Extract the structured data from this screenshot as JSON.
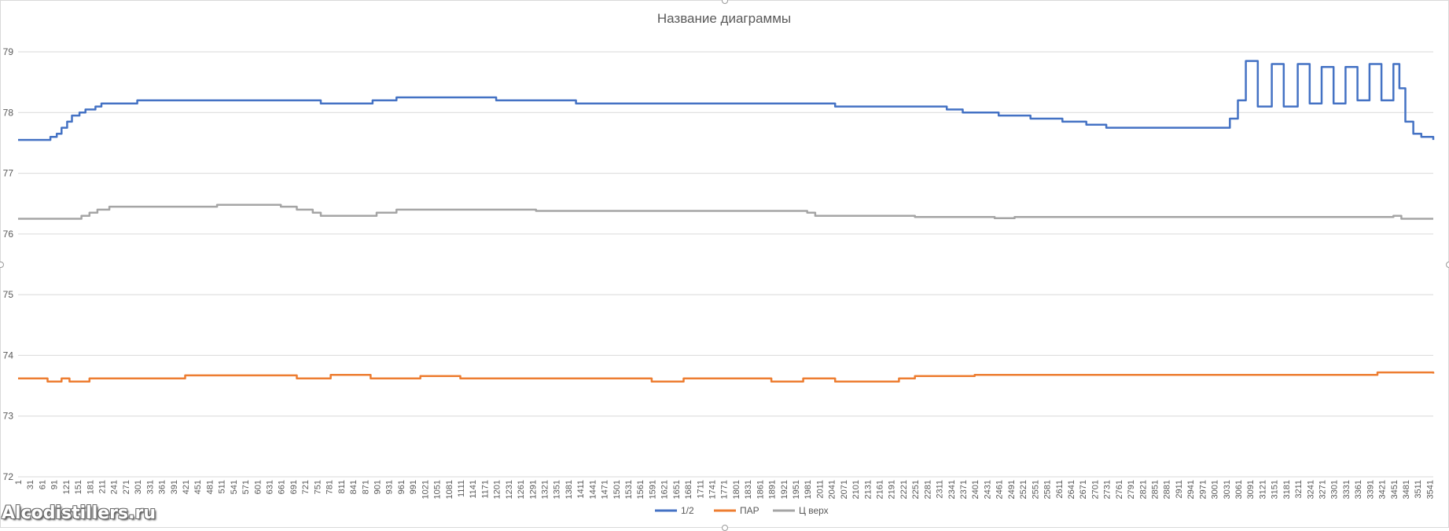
{
  "watermark": "Alcodistillers.ru",
  "chart_data": {
    "type": "line",
    "title": "Название диаграммы",
    "xlabel": "",
    "ylabel": "",
    "ylim": [
      72,
      79
    ],
    "yticks": [
      72,
      73,
      74,
      75,
      76,
      77,
      78,
      79
    ],
    "xlim": [
      1,
      3550
    ],
    "xtick_start": 1,
    "xtick_step": 30,
    "xtick_end": 3541,
    "grid": true,
    "legend_position": "bottom",
    "series": [
      {
        "name": "1/2",
        "color": "#4472c4",
        "points": [
          [
            1,
            77.55
          ],
          [
            75,
            77.55
          ],
          [
            82,
            77.6
          ],
          [
            98,
            77.65
          ],
          [
            110,
            77.75
          ],
          [
            124,
            77.85
          ],
          [
            136,
            77.95
          ],
          [
            155,
            78.0
          ],
          [
            170,
            78.05
          ],
          [
            195,
            78.1
          ],
          [
            210,
            78.15
          ],
          [
            300,
            78.2
          ],
          [
            700,
            78.2
          ],
          [
            760,
            78.15
          ],
          [
            890,
            78.2
          ],
          [
            950,
            78.25
          ],
          [
            1150,
            78.25
          ],
          [
            1200,
            78.2
          ],
          [
            1400,
            78.15
          ],
          [
            2000,
            78.15
          ],
          [
            2050,
            78.1
          ],
          [
            2330,
            78.05
          ],
          [
            2370,
            78.0
          ],
          [
            2460,
            77.95
          ],
          [
            2540,
            77.9
          ],
          [
            2620,
            77.85
          ],
          [
            2680,
            77.8
          ],
          [
            2730,
            77.75
          ],
          [
            3010,
            77.75
          ],
          [
            3040,
            77.9
          ],
          [
            3060,
            78.2
          ],
          [
            3080,
            78.85
          ],
          [
            3110,
            78.1
          ],
          [
            3145,
            78.8
          ],
          [
            3175,
            78.1
          ],
          [
            3210,
            78.8
          ],
          [
            3240,
            78.15
          ],
          [
            3270,
            78.75
          ],
          [
            3300,
            78.15
          ],
          [
            3330,
            78.75
          ],
          [
            3360,
            78.2
          ],
          [
            3390,
            78.8
          ],
          [
            3420,
            78.2
          ],
          [
            3450,
            78.8
          ],
          [
            3465,
            78.4
          ],
          [
            3480,
            77.85
          ],
          [
            3500,
            77.65
          ],
          [
            3520,
            77.6
          ],
          [
            3550,
            77.55
          ]
        ]
      },
      {
        "name": "ПАР",
        "color": "#ed7d31",
        "points": [
          [
            1,
            73.62
          ],
          [
            70,
            73.62
          ],
          [
            75,
            73.57
          ],
          [
            105,
            73.57
          ],
          [
            110,
            73.62
          ],
          [
            125,
            73.62
          ],
          [
            130,
            73.57
          ],
          [
            175,
            73.57
          ],
          [
            180,
            73.62
          ],
          [
            400,
            73.62
          ],
          [
            420,
            73.67
          ],
          [
            690,
            73.67
          ],
          [
            700,
            73.62
          ],
          [
            780,
            73.62
          ],
          [
            785,
            73.68
          ],
          [
            880,
            73.68
          ],
          [
            885,
            73.62
          ],
          [
            1000,
            73.62
          ],
          [
            1010,
            73.66
          ],
          [
            1100,
            73.66
          ],
          [
            1110,
            73.62
          ],
          [
            1580,
            73.62
          ],
          [
            1590,
            73.57
          ],
          [
            1660,
            73.57
          ],
          [
            1670,
            73.62
          ],
          [
            1880,
            73.62
          ],
          [
            1890,
            73.57
          ],
          [
            1960,
            73.57
          ],
          [
            1970,
            73.62
          ],
          [
            2040,
            73.62
          ],
          [
            2050,
            73.57
          ],
          [
            2200,
            73.57
          ],
          [
            2210,
            73.62
          ],
          [
            2240,
            73.62
          ],
          [
            2250,
            73.66
          ],
          [
            2400,
            73.68
          ],
          [
            3400,
            73.68
          ],
          [
            3410,
            73.72
          ],
          [
            3530,
            73.72
          ],
          [
            3550,
            73.7
          ]
        ]
      },
      {
        "name": "Ц верх",
        "color": "#a5a5a5",
        "points": [
          [
            1,
            76.25
          ],
          [
            150,
            76.25
          ],
          [
            160,
            76.3
          ],
          [
            180,
            76.35
          ],
          [
            200,
            76.4
          ],
          [
            230,
            76.45
          ],
          [
            500,
            76.48
          ],
          [
            640,
            76.48
          ],
          [
            660,
            76.45
          ],
          [
            700,
            76.4
          ],
          [
            740,
            76.35
          ],
          [
            760,
            76.3
          ],
          [
            880,
            76.3
          ],
          [
            900,
            76.35
          ],
          [
            950,
            76.4
          ],
          [
            1300,
            76.38
          ],
          [
            1700,
            76.38
          ],
          [
            1980,
            76.35
          ],
          [
            2000,
            76.3
          ],
          [
            2250,
            76.28
          ],
          [
            2450,
            76.26
          ],
          [
            2500,
            76.28
          ],
          [
            3450,
            76.3
          ],
          [
            3470,
            76.25
          ],
          [
            3550,
            76.25
          ]
        ]
      }
    ]
  }
}
